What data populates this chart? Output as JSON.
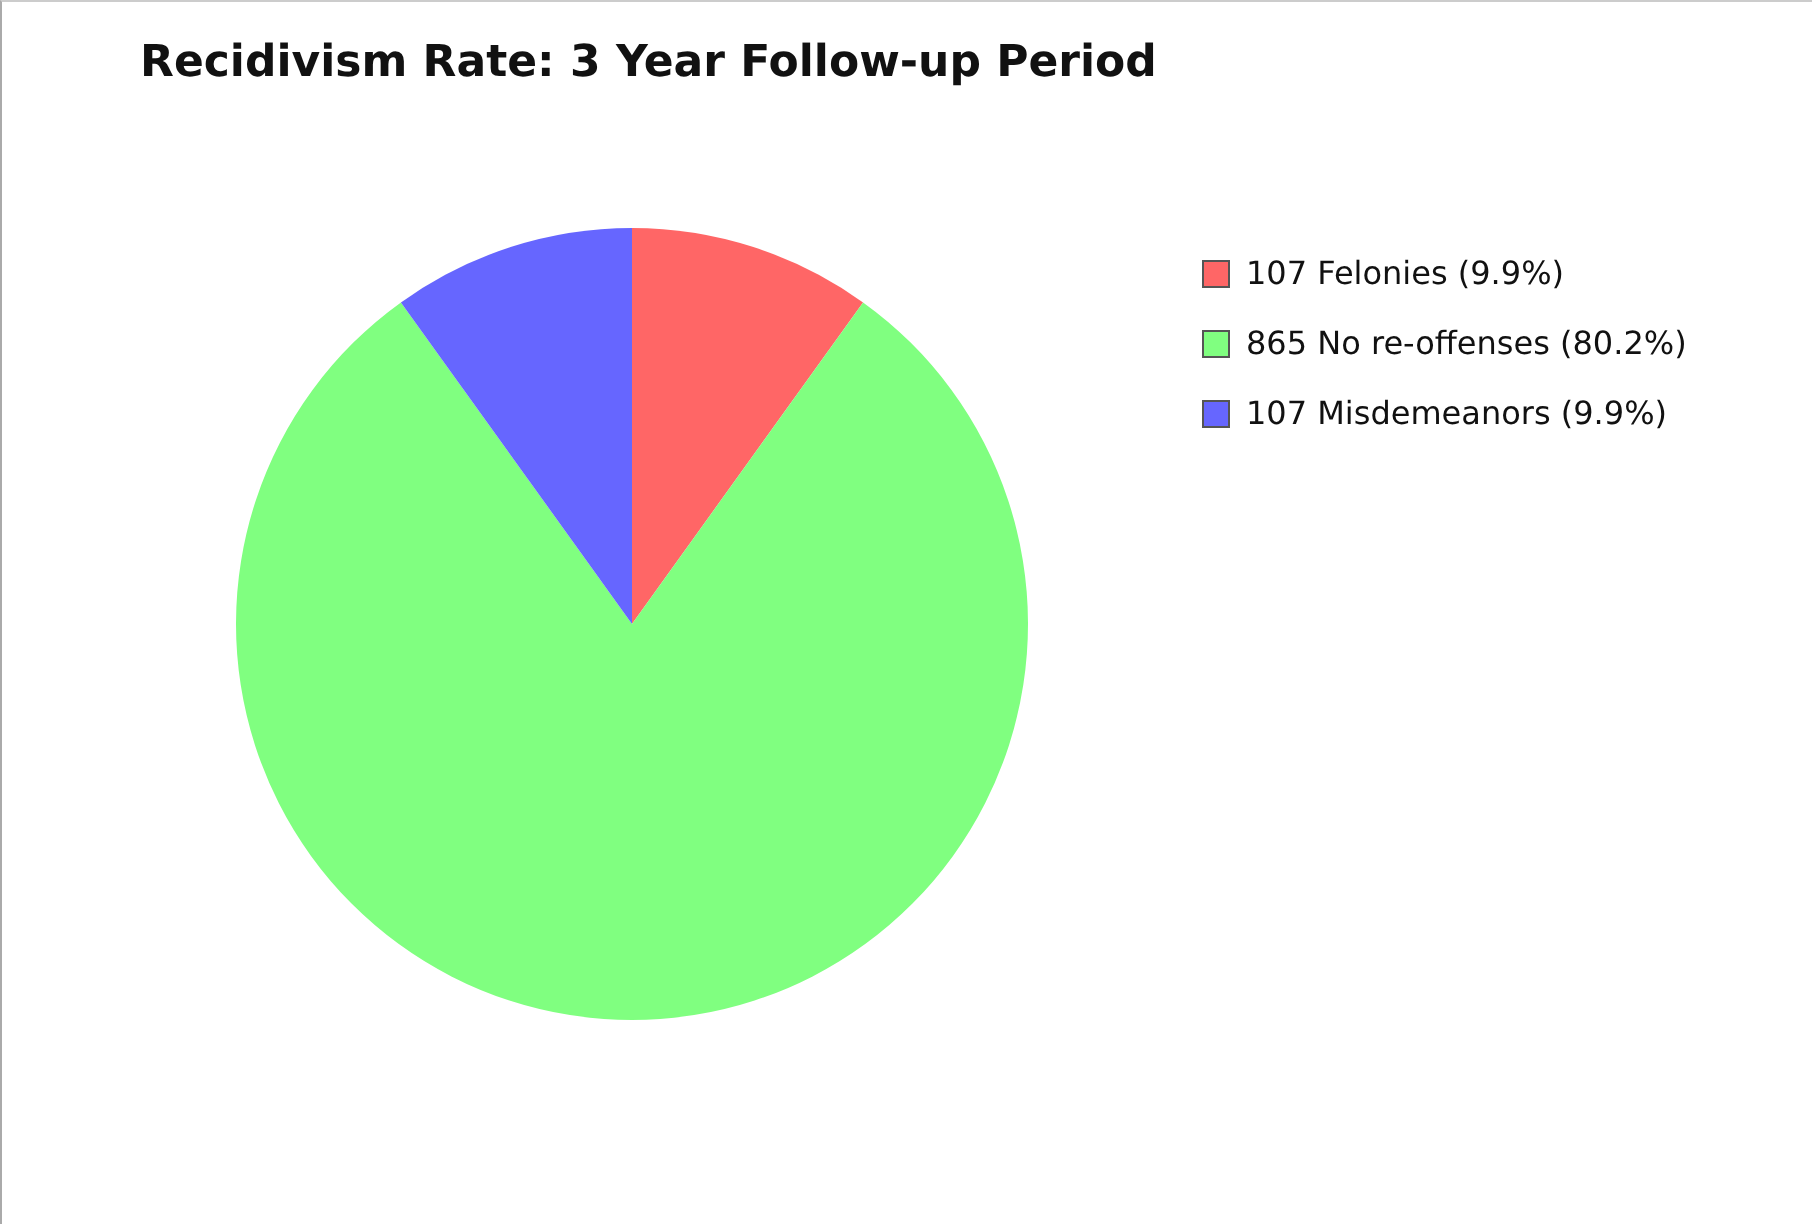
{
  "chart_data": {
    "type": "pie",
    "title": "Recidivism Rate: 3 Year Follow-up Period",
    "categories": [
      "107 Felonies (9.9%)",
      "865 No re-offenses (80.2%)",
      "107 Misdemeanors (9.9%)"
    ],
    "values": [
      107,
      865,
      107
    ],
    "colors": [
      "#ff6666",
      "#80ff80",
      "#6666ff"
    ],
    "legend": "top right"
  }
}
